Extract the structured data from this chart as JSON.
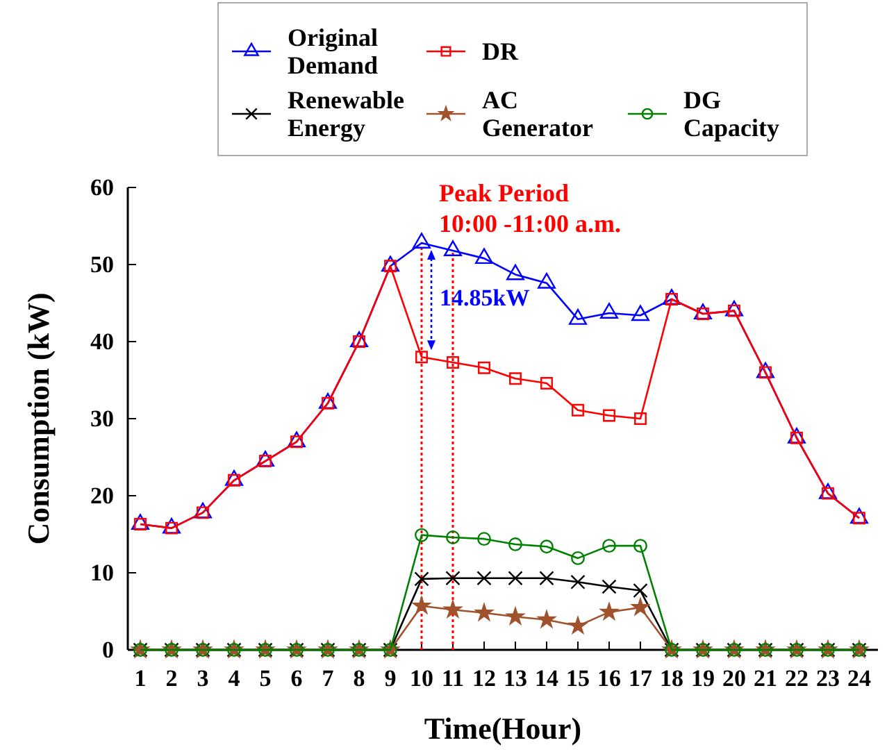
{
  "chart_data": {
    "type": "line",
    "xlabel": "Time(Hour)",
    "ylabel": "Consumption (kW)",
    "x": [
      1,
      2,
      3,
      4,
      5,
      6,
      7,
      8,
      9,
      10,
      11,
      12,
      13,
      14,
      15,
      16,
      17,
      18,
      19,
      20,
      21,
      22,
      23,
      24
    ],
    "xlim": [
      0.6,
      24.6
    ],
    "xticks": [
      1,
      2,
      3,
      4,
      5,
      6,
      7,
      8,
      9,
      10,
      11,
      12,
      13,
      14,
      15,
      16,
      17,
      18,
      19,
      20,
      21,
      22,
      23,
      24
    ],
    "ylim": [
      0,
      60
    ],
    "yticks": [
      0,
      10,
      20,
      30,
      40,
      50,
      60
    ],
    "series": [
      {
        "name": "Original Demand",
        "color": "#0000ff",
        "marker": "triangle",
        "values": [
          16.3,
          15.8,
          17.8,
          22,
          24.5,
          27,
          32,
          40,
          49.8,
          52.8,
          51.8,
          50.8,
          48.7,
          47.6,
          42.9,
          43.7,
          43.4,
          45.5,
          43.6,
          44,
          36,
          27.5,
          20.3,
          17.1
        ]
      },
      {
        "name": "DR",
        "color": "#ff0000",
        "marker": "square",
        "values": [
          16.3,
          15.8,
          17.8,
          22,
          24.5,
          27,
          32,
          40,
          49.8,
          38,
          37.3,
          36.6,
          35.2,
          34.6,
          31.1,
          30.4,
          30,
          45.5,
          43.6,
          44,
          36,
          27.5,
          20.3,
          17.1
        ]
      },
      {
        "name": "Renewable Energy",
        "color": "#000000",
        "marker": "cross",
        "values": [
          0,
          0,
          0,
          0,
          0,
          0,
          0,
          0,
          0,
          9.2,
          9.3,
          9.3,
          9.3,
          9.3,
          8.8,
          8.2,
          7.7,
          0,
          0,
          0,
          0,
          0,
          0,
          0
        ]
      },
      {
        "name": "AC Generator",
        "color": "#a0522d",
        "marker": "star",
        "values": [
          0,
          0,
          0,
          0,
          0,
          0,
          0,
          0,
          0,
          5.7,
          5.2,
          4.8,
          4.3,
          3.9,
          3.1,
          4.9,
          5.5,
          0,
          0,
          0,
          0,
          0,
          0,
          0
        ]
      },
      {
        "name": "DG Capacity",
        "color": "#008000",
        "marker": "circle",
        "values": [
          0,
          0,
          0,
          0,
          0,
          0,
          0,
          0,
          0,
          14.9,
          14.6,
          14.4,
          13.7,
          13.4,
          11.9,
          13.5,
          13.5,
          0,
          0,
          0,
          0,
          0,
          0,
          0
        ]
      }
    ],
    "ref_lines": [
      {
        "axis": "x",
        "value": 10,
        "color": "#ff0000",
        "line_style": "dotted"
      },
      {
        "axis": "x",
        "value": 11,
        "color": "#ff0000",
        "line_style": "dotted"
      }
    ],
    "annotations": [
      "Peak Period",
      "10:00 -11:00 a.m.",
      "14.85kW"
    ],
    "legend": "top",
    "grid": false,
    "line_style": "solid"
  }
}
